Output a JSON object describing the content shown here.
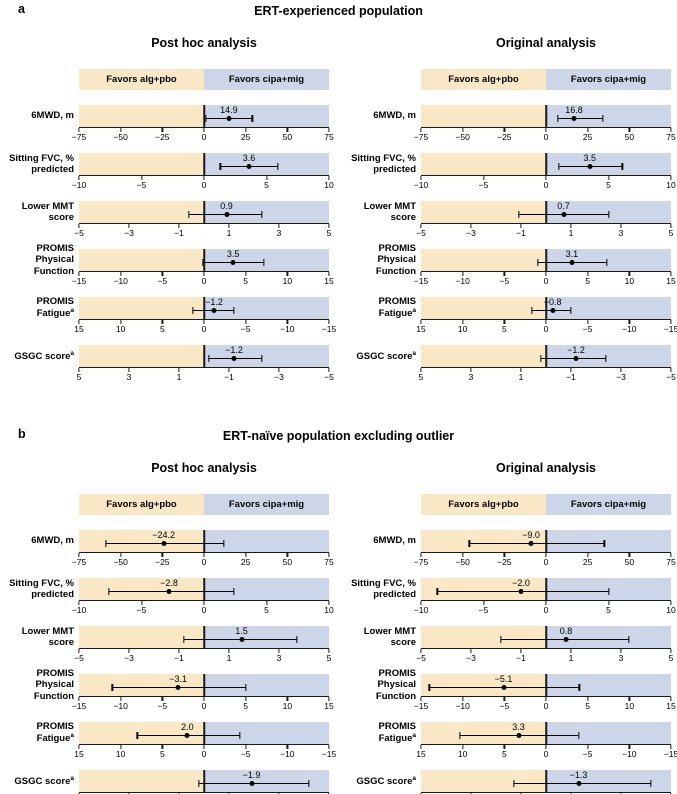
{
  "chart_data": {
    "type": "forest",
    "band_labels": {
      "left": "Favors alg+pbo",
      "right": "Favors cipa+mig"
    },
    "colors": {
      "favors_left": "#fae7c6",
      "favors_right": "#cdd6e9",
      "axis": "#1a1a1a",
      "marker": "#000000"
    },
    "measures": [
      {
        "label_lines": [
          "6MWD, m"
        ],
        "sup": "",
        "axis": {
          "min": -75,
          "max": 75,
          "tick_values": [
            -75,
            -50,
            -25,
            0,
            25,
            50,
            75
          ],
          "tick_labels": [
            "−75",
            "−50",
            "−25",
            "0",
            "25",
            "50",
            "75"
          ]
        }
      },
      {
        "label_lines": [
          "Sitting FVC, %",
          "predicted"
        ],
        "sup": "",
        "axis": {
          "min": -10,
          "max": 10,
          "tick_values": [
            -10,
            -5,
            0,
            5,
            10
          ],
          "tick_labels": [
            "−10",
            "−5",
            "0",
            "5",
            "10"
          ]
        }
      },
      {
        "label_lines": [
          "Lower MMT score"
        ],
        "sup": "",
        "axis": {
          "min": -5,
          "max": 5,
          "tick_values": [
            -5,
            -3,
            -1,
            1,
            3,
            5
          ],
          "tick_labels": [
            "−5",
            "−3",
            "−1",
            "1",
            "3",
            "5"
          ]
        }
      },
      {
        "label_lines": [
          "PROMIS",
          "Physical Function"
        ],
        "sup": "",
        "axis": {
          "min": -15,
          "max": 15,
          "tick_values": [
            -15,
            -10,
            -5,
            0,
            5,
            10,
            15
          ],
          "tick_labels": [
            "−15",
            "−10",
            "−5",
            "0",
            "5",
            "10",
            "15"
          ]
        }
      },
      {
        "label_lines": [
          "PROMIS",
          "Fatigue"
        ],
        "sup": "a",
        "axis": {
          "min": 15,
          "max": -15,
          "tick_values": [
            15,
            10,
            5,
            0,
            -5,
            -10,
            -15
          ],
          "tick_labels": [
            "15",
            "10",
            "5",
            "0",
            "−5",
            "−10",
            "−15"
          ]
        }
      },
      {
        "label_lines": [
          "GSGC score"
        ],
        "sup": "a",
        "axis": {
          "min": 5,
          "max": -5,
          "tick_values": [
            5,
            3,
            1,
            -1,
            -3,
            -5
          ],
          "tick_labels": [
            "5",
            "3",
            "1",
            "−1",
            "−3",
            "−5"
          ]
        }
      }
    ],
    "panels": [
      {
        "letter": "a",
        "title": "ERT-experienced population",
        "analyses": [
          {
            "name": "Post hoc analysis",
            "results": [
              {
                "value": 14.9,
                "value_label": "14.9",
                "ci": [
                  1.0,
                  29.0
                ]
              },
              {
                "value": 3.6,
                "value_label": "3.6",
                "ci": [
                  1.3,
                  5.9
                ]
              },
              {
                "value": 0.9,
                "value_label": "0.9",
                "ci": [
                  -0.6,
                  2.3
                ]
              },
              {
                "value": 3.5,
                "value_label": "3.5",
                "ci": [
                  -0.1,
                  7.2
                ]
              },
              {
                "value": -1.2,
                "value_label": "−1.2",
                "ci": [
                  -3.6,
                  1.3
                ]
              },
              {
                "value": -1.2,
                "value_label": "−1.2",
                "ci": [
                  -2.3,
                  -0.2
                ]
              }
            ]
          },
          {
            "name": "Original analysis",
            "results": [
              {
                "value": 16.8,
                "value_label": "16.8",
                "ci": [
                  7.0,
                  34.0
                ]
              },
              {
                "value": 3.5,
                "value_label": "3.5",
                "ci": [
                  1.0,
                  6.1
                ]
              },
              {
                "value": 0.7,
                "value_label": "0.7",
                "ci": [
                  -1.1,
                  2.5
                ]
              },
              {
                "value": 3.1,
                "value_label": "3.1",
                "ci": [
                  -1.0,
                  7.3
                ]
              },
              {
                "value": -0.8,
                "value_label": "−0.8",
                "ci": [
                  -3.0,
                  1.7
                ]
              },
              {
                "value": -1.2,
                "value_label": "−1.2",
                "ci": [
                  -2.4,
                  0.2
                ]
              }
            ]
          }
        ]
      },
      {
        "letter": "b",
        "title": "ERT-naïve population excluding outlier",
        "analyses": [
          {
            "name": "Post hoc analysis",
            "results": [
              {
                "value": -24.2,
                "value_label": "−24.2",
                "ci": [
                  -59.0,
                  12.0
                ]
              },
              {
                "value": -2.8,
                "value_label": "−2.8",
                "ci": [
                  -7.6,
                  2.4
                ]
              },
              {
                "value": 1.5,
                "value_label": "1.5",
                "ci": [
                  -0.8,
                  3.7
                ]
              },
              {
                "value": -3.1,
                "value_label": "−3.1",
                "ci": [
                  -11.0,
                  5.0
                ]
              },
              {
                "value": 2.0,
                "value_label": "2.0",
                "ci": [
                  -4.3,
                  8.0
                ]
              },
              {
                "value": -1.9,
                "value_label": "−1.9",
                "ci": [
                  -4.2,
                  0.2
                ]
              }
            ]
          },
          {
            "name": "Original analysis",
            "results": [
              {
                "value": -9.0,
                "value_label": "−9.0",
                "ci": [
                  -46.0,
                  35.0
                ]
              },
              {
                "value": -2.0,
                "value_label": "−2.0",
                "ci": [
                  -8.7,
                  5.0
                ]
              },
              {
                "value": 0.8,
                "value_label": "0.8",
                "ci": [
                  -1.8,
                  3.3
                ]
              },
              {
                "value": -5.1,
                "value_label": "−5.1",
                "ci": [
                  -14.0,
                  4.0
                ]
              },
              {
                "value": 3.3,
                "value_label": "3.3",
                "ci": [
                  -3.9,
                  10.3
                ]
              },
              {
                "value": -1.3,
                "value_label": "−1.3",
                "ci": [
                  -4.2,
                  1.3
                ]
              }
            ]
          }
        ]
      }
    ]
  }
}
